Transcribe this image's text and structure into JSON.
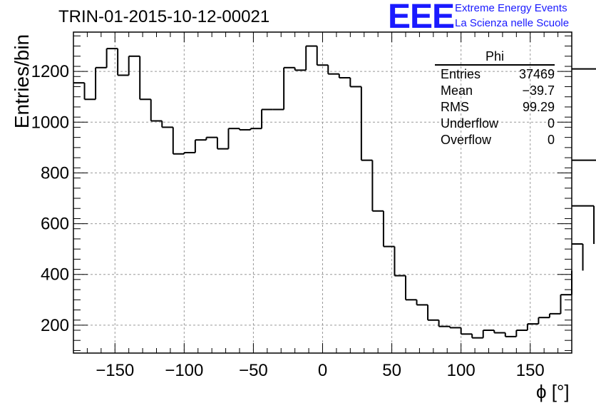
{
  "header": {
    "title": "TRIN-01-2015-10-12-00021",
    "logo": "EEE",
    "logo_line1": "Extreme Energy Events",
    "logo_line2": "La Scienza nelle Scuole"
  },
  "stats": {
    "name": "Phi",
    "rows": [
      {
        "label": "Entries",
        "value": "37469"
      },
      {
        "label": "Mean",
        "value": "−39.7"
      },
      {
        "label": "RMS",
        "value": "99.29"
      },
      {
        "label": "Underflow",
        "value": "0"
      },
      {
        "label": "Overflow",
        "value": "0"
      }
    ]
  },
  "chart_data": {
    "type": "histogram",
    "title": "TRIN-01-2015-10-12-00021",
    "xlabel": "ϕ [°]",
    "ylabel": "Entries/bin",
    "xlim": [
      -180,
      180
    ],
    "ylim": [
      90,
      1355
    ],
    "bin_width": 8,
    "bin_edges_start": -180,
    "values": [
      1155,
      1090,
      1215,
      1290,
      1185,
      1260,
      1090,
      1005,
      980,
      875,
      880,
      930,
      940,
      895,
      975,
      970,
      975,
      1050,
      1050,
      1215,
      1205,
      1300,
      1225,
      1190,
      1175,
      1140,
      850,
      650,
      510,
      395,
      300,
      280,
      220,
      195,
      190,
      165,
      150,
      180,
      170,
      155,
      180,
      205,
      230,
      245,
      320,
      415,
      520,
      670,
      850,
      1210
    ],
    "xticks": [
      -150,
      -100,
      -50,
      0,
      50,
      100,
      150
    ],
    "xtick_labels": [
      "−150",
      "−100",
      "−50",
      "0",
      "50",
      "100",
      "150"
    ],
    "yticks": [
      200,
      400,
      600,
      800,
      1000,
      1200
    ],
    "ytick_labels": [
      "200",
      "400",
      "600",
      "800",
      "1000",
      "1200"
    ],
    "grid": true,
    "legend": "none"
  }
}
